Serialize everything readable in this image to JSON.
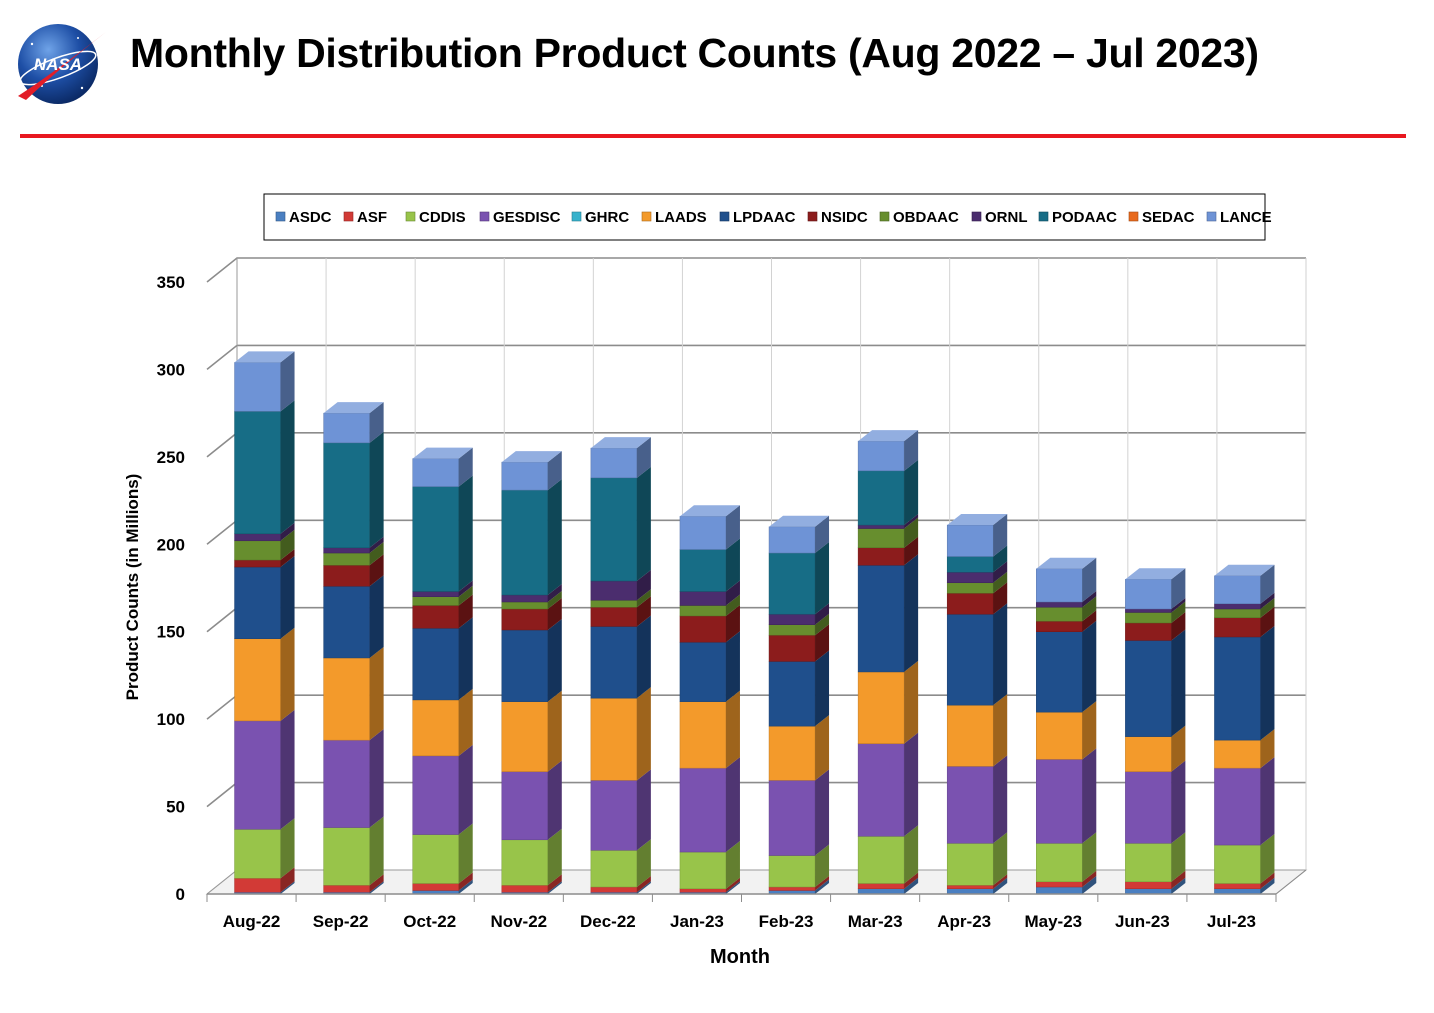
{
  "header": {
    "title": "Monthly Distribution Product Counts (Aug 2022 – Jul 2023)",
    "logo_text": "NASA"
  },
  "chart_data": {
    "type": "bar",
    "stacked": true,
    "three_d": true,
    "xlabel": "Month",
    "ylabel": "Product Counts (in Millions)",
    "ylim": [
      0,
      350
    ],
    "yticks": [
      0,
      50,
      100,
      150,
      200,
      250,
      300,
      350
    ],
    "grid": true,
    "legend_position": "top",
    "categories": [
      "Aug-22",
      "Sep-22",
      "Oct-22",
      "Nov-22",
      "Dec-22",
      "Jan-23",
      "Feb-23",
      "Mar-23",
      "Apr-23",
      "May-23",
      "Jun-23",
      "Jul-23"
    ],
    "series": [
      {
        "name": "ASDC",
        "color": "#4a7fc1",
        "values": [
          1,
          1,
          2,
          1,
          1,
          1,
          2,
          3,
          3,
          4,
          3,
          3
        ]
      },
      {
        "name": "ASF",
        "color": "#d23a36",
        "values": [
          8,
          4,
          4,
          4,
          3,
          2,
          2,
          3,
          2,
          3,
          4,
          3
        ]
      },
      {
        "name": "CDDIS",
        "color": "#98c44a",
        "values": [
          28,
          33,
          28,
          26,
          21,
          21,
          18,
          27,
          24,
          22,
          22,
          22
        ]
      },
      {
        "name": "GESDISC",
        "color": "#7a52b0",
        "values": [
          62,
          50,
          45,
          39,
          40,
          48,
          43,
          53,
          44,
          48,
          41,
          44
        ]
      },
      {
        "name": "GHRC",
        "color": "#37b2cc",
        "values": [
          0,
          0,
          0,
          0,
          0,
          0,
          0,
          0,
          0,
          0,
          0,
          0
        ]
      },
      {
        "name": "LAADS",
        "color": "#f39a2b",
        "values": [
          47,
          47,
          32,
          40,
          47,
          38,
          31,
          41,
          35,
          27,
          20,
          16
        ]
      },
      {
        "name": "LPDAAC",
        "color": "#1f4f8c",
        "values": [
          41,
          41,
          41,
          41,
          41,
          34,
          37,
          61,
          52,
          46,
          55,
          59
        ]
      },
      {
        "name": "NSIDC",
        "color": "#8c1c1c",
        "values": [
          4,
          12,
          13,
          12,
          11,
          15,
          15,
          10,
          12,
          6,
          10,
          11
        ]
      },
      {
        "name": "OBDAAC",
        "color": "#678e2e",
        "values": [
          11,
          7,
          5,
          4,
          4,
          6,
          6,
          11,
          6,
          8,
          6,
          5
        ]
      },
      {
        "name": "ORNL",
        "color": "#4b2d6e",
        "values": [
          4,
          3,
          3,
          4,
          11,
          8,
          6,
          2,
          6,
          3,
          2,
          3
        ]
      },
      {
        "name": "PODAAC",
        "color": "#176d86",
        "values": [
          70,
          60,
          60,
          60,
          59,
          24,
          35,
          31,
          9,
          0,
          0,
          0
        ]
      },
      {
        "name": "SEDAC",
        "color": "#e8691c",
        "values": [
          0,
          0,
          0,
          0,
          0,
          0,
          0,
          0,
          0,
          0,
          0,
          0
        ]
      },
      {
        "name": "LANCE",
        "color": "#6e93d6",
        "values": [
          28,
          17,
          16,
          16,
          17,
          19,
          15,
          17,
          18,
          19,
          17,
          16
        ]
      }
    ]
  }
}
